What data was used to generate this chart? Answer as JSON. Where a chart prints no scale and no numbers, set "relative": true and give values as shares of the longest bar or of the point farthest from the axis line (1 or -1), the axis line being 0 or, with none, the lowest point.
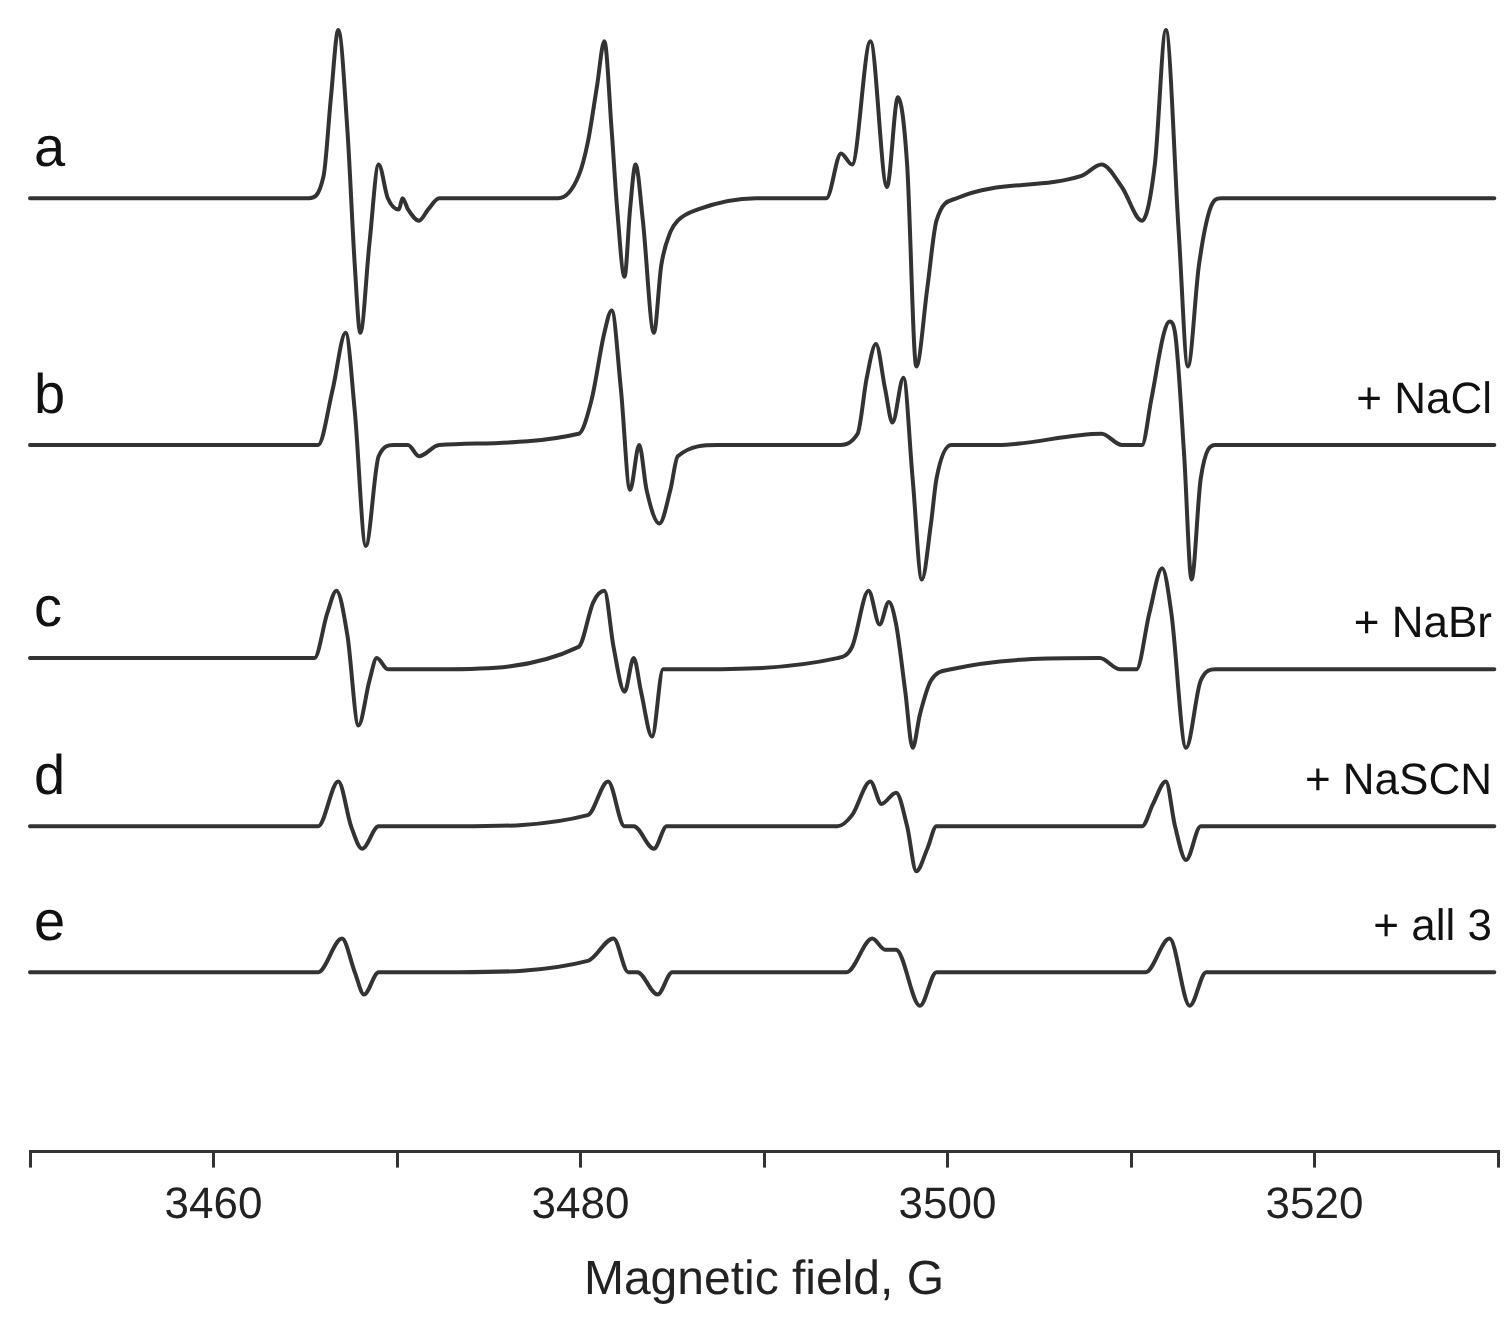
{
  "chart_data": {
    "type": "line",
    "relative": true,
    "xlabel": "Magnetic field, G",
    "xlim": [
      3450,
      3530
    ],
    "xticks": [
      {
        "value": 3450,
        "label": null
      },
      3460,
      {
        "value": 3470,
        "label": null
      },
      3480,
      {
        "value": 3490,
        "label": null
      },
      3500,
      {
        "value": 3510,
        "label": null
      },
      3520,
      {
        "value": 3530,
        "label": null
      }
    ],
    "marker": "none",
    "line_style": "solid",
    "legend": false,
    "annotations": [
      "+ NaCl",
      "+ NaBr",
      "+ NaSCN",
      "+ all 3"
    ],
    "series": [
      {
        "name": "a",
        "color": "#333333",
        "x": [
          3450.0,
          3465.2,
          3466.0,
          3466.4,
          3466.8,
          3467.3,
          3467.7,
          3468.0,
          3468.5,
          3469.0,
          3469.5,
          3470.1,
          3470.3,
          3470.6,
          3471.2,
          3471.7,
          3472.3,
          3478.8,
          3479.9,
          3480.4,
          3480.9,
          3481.3,
          3481.7,
          3482.0,
          3482.4,
          3482.7,
          3483.0,
          3483.4,
          3484.0,
          3484.4,
          3484.9,
          3485.3,
          3486.4,
          3489.6,
          3493.4,
          3494.2,
          3494.8,
          3495.8,
          3496.7,
          3497.3,
          3497.8,
          3498.3,
          3498.9,
          3499.4,
          3500.5,
          3507.3,
          3508.4,
          3509.5,
          3510.6,
          3511.3,
          3511.9,
          3512.6,
          3513.1,
          3513.7,
          3514.3,
          3514.9,
          3529.8
        ],
        "values": [
          0.85,
          0.85,
          0.87,
          0.94,
          1.0,
          0.91,
          0.79,
          0.73,
          0.81,
          0.88,
          0.85,
          0.84,
          0.85,
          0.84,
          0.83,
          0.84,
          0.85,
          0.85,
          0.87,
          0.9,
          0.95,
          0.99,
          0.91,
          0.84,
          0.78,
          0.84,
          0.88,
          0.83,
          0.73,
          0.79,
          0.82,
          0.83,
          0.84,
          0.85,
          0.85,
          0.89,
          0.88,
          0.99,
          0.86,
          0.94,
          0.88,
          0.7,
          0.77,
          0.83,
          0.85,
          0.87,
          0.88,
          0.86,
          0.83,
          0.88,
          1.0,
          0.82,
          0.7,
          0.79,
          0.84,
          0.85,
          0.85
        ]
      },
      {
        "name": "b",
        "color": "#333333",
        "x": [
          3450.0,
          3465.7,
          3466.5,
          3467.2,
          3467.7,
          3468.3,
          3469.0,
          3469.8,
          3470.1,
          3470.6,
          3471.2,
          3472.3,
          3479.9,
          3480.6,
          3481.3,
          3481.7,
          3482.2,
          3482.7,
          3483.2,
          3483.6,
          3484.3,
          3484.9,
          3485.3,
          3487.5,
          3494.0,
          3495.1,
          3495.6,
          3496.1,
          3496.6,
          3497.0,
          3497.6,
          3498.1,
          3498.6,
          3499.1,
          3499.4,
          3500.2,
          3502.7,
          3508.4,
          3509.5,
          3510.6,
          3511.1,
          3511.8,
          3512.1,
          3512.4,
          3512.9,
          3513.3,
          3513.8,
          3514.6,
          3529.8
        ],
        "values": [
          0.63,
          0.63,
          0.68,
          0.73,
          0.66,
          0.54,
          0.62,
          0.63,
          0.63,
          0.63,
          0.62,
          0.63,
          0.64,
          0.67,
          0.73,
          0.75,
          0.68,
          0.59,
          0.63,
          0.59,
          0.56,
          0.59,
          0.62,
          0.63,
          0.63,
          0.64,
          0.69,
          0.72,
          0.68,
          0.65,
          0.69,
          0.6,
          0.51,
          0.56,
          0.6,
          0.63,
          0.63,
          0.64,
          0.63,
          0.63,
          0.67,
          0.73,
          0.74,
          0.73,
          0.62,
          0.51,
          0.6,
          0.63,
          0.63
        ]
      },
      {
        "name": "c",
        "color": "#333333",
        "x": [
          3450.0,
          3465.5,
          3466.2,
          3466.7,
          3467.3,
          3467.9,
          3468.5,
          3468.9,
          3469.5,
          3470.1,
          3470.9,
          3472.3,
          3479.9,
          3480.7,
          3481.3,
          3481.8,
          3482.4,
          3482.9,
          3483.3,
          3483.9,
          3484.5,
          3485.8,
          3494.0,
          3494.8,
          3495.7,
          3496.3,
          3496.8,
          3497.2,
          3497.7,
          3498.1,
          3498.5,
          3499.1,
          3500.2,
          3508.3,
          3509.4,
          3510.3,
          3511.0,
          3511.7,
          3512.2,
          3513.0,
          3513.8,
          3514.6,
          3529.8
        ],
        "values": [
          0.44,
          0.44,
          0.48,
          0.5,
          0.46,
          0.38,
          0.42,
          0.44,
          0.43,
          0.43,
          0.43,
          0.43,
          0.45,
          0.49,
          0.5,
          0.45,
          0.41,
          0.44,
          0.41,
          0.37,
          0.43,
          0.43,
          0.44,
          0.45,
          0.5,
          0.47,
          0.49,
          0.47,
          0.41,
          0.36,
          0.39,
          0.42,
          0.43,
          0.44,
          0.43,
          0.43,
          0.48,
          0.52,
          0.48,
          0.36,
          0.42,
          0.43,
          0.43
        ]
      },
      {
        "name": "d",
        "color": "#333333",
        "x": [
          3450.0,
          3465.7,
          3466.8,
          3467.5,
          3468.1,
          3469.0,
          3470.1,
          3471.2,
          3473.3,
          3480.4,
          3481.5,
          3482.4,
          3482.9,
          3484.0,
          3484.7,
          3489.6,
          3494.0,
          3494.8,
          3495.8,
          3496.4,
          3497.2,
          3497.8,
          3498.3,
          3498.9,
          3499.4,
          3501.6,
          3510.3,
          3510.6,
          3511.2,
          3511.9,
          3512.4,
          3513.0,
          3513.8,
          3529.8
        ],
        "values": [
          0.29,
          0.29,
          0.33,
          0.29,
          0.27,
          0.29,
          0.29,
          0.29,
          0.29,
          0.3,
          0.33,
          0.29,
          0.29,
          0.27,
          0.29,
          0.29,
          0.29,
          0.3,
          0.33,
          0.31,
          0.32,
          0.29,
          0.25,
          0.27,
          0.29,
          0.29,
          0.29,
          0.29,
          0.31,
          0.33,
          0.29,
          0.26,
          0.29,
          0.29
        ]
      },
      {
        "name": "e",
        "color": "#333333",
        "x": [
          3450.0,
          3465.7,
          3467.0,
          3467.7,
          3468.2,
          3469.0,
          3470.1,
          3473.3,
          3480.4,
          3481.8,
          3482.6,
          3483.1,
          3484.2,
          3485.0,
          3489.6,
          3494.5,
          3495.9,
          3496.6,
          3497.2,
          3498.5,
          3499.4,
          3502.7,
          3510.8,
          3512.1,
          3513.2,
          3514.1,
          3529.8
        ],
        "values": [
          0.16,
          0.16,
          0.19,
          0.16,
          0.14,
          0.16,
          0.16,
          0.16,
          0.17,
          0.19,
          0.16,
          0.16,
          0.14,
          0.16,
          0.16,
          0.16,
          0.19,
          0.18,
          0.18,
          0.13,
          0.16,
          0.16,
          0.16,
          0.19,
          0.13,
          0.16,
          0.16
        ]
      }
    ]
  }
}
